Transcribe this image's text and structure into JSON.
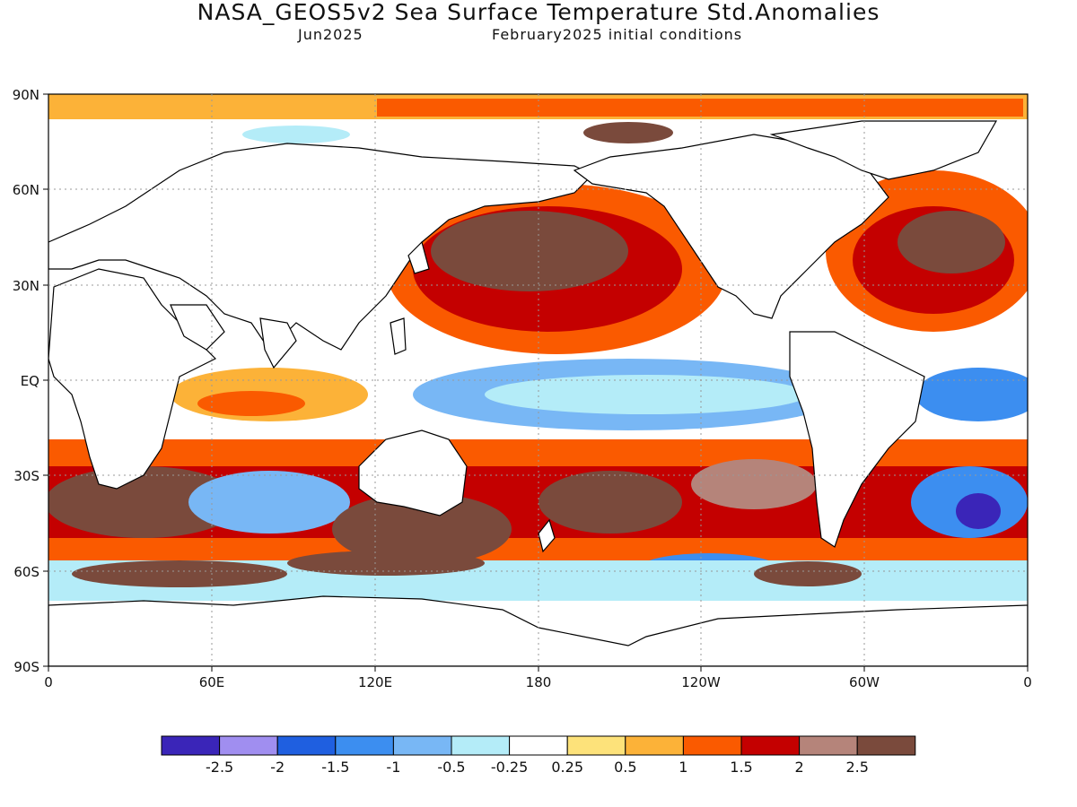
{
  "title": "NASA_GEOS5v2 Sea Surface Temperature Std.Anomalies",
  "subtitle_left": "Jun2025",
  "subtitle_right": "February2025 initial conditions",
  "map": {
    "lat_labels": [
      "90N",
      "60N",
      "30N",
      "EQ",
      "30S",
      "60S",
      "90S"
    ],
    "lon_labels": [
      "0",
      "60E",
      "120E",
      "180",
      "120W",
      "60W",
      "0"
    ]
  },
  "colorbar": {
    "labels": [
      "-2.5",
      "-2",
      "-1.5",
      "-1",
      "-0.5",
      "-0.25",
      "0.25",
      "0.5",
      "1",
      "1.5",
      "2",
      "2.5"
    ],
    "colors": [
      "#3a25b8",
      "#a08ef0",
      "#1f5fe0",
      "#3c8ef0",
      "#78b7f5",
      "#b4ecf8",
      "#ffffff",
      "#fde27a",
      "#fcb238",
      "#fa5a00",
      "#c40000",
      "#b5847a",
      "#7a4a3c"
    ]
  }
}
